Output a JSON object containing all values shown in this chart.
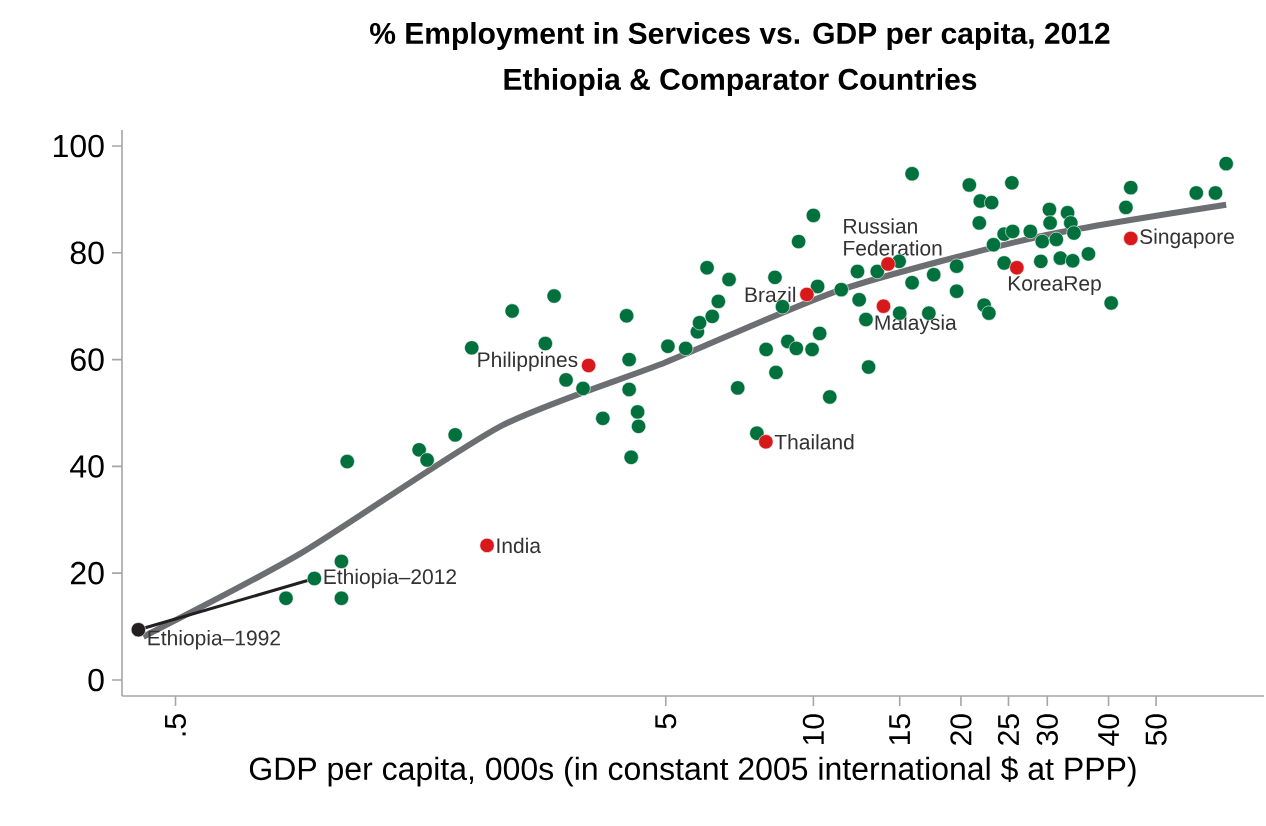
{
  "chart_data": {
    "type": "scatter",
    "title": "% Employment in Services vs. GDP per capita, 2012",
    "subtitle": "Ethiopia & Comparator Countries",
    "xlabel": "GDP per capita, 000s (in constant 2005 international $ at PPP)",
    "log": "x",
    "marker": "circle",
    "grid": false,
    "xlim": [
      0.389,
      83
    ],
    "ylim": [
      -3,
      103
    ],
    "xticks": [
      {
        "value": 0.5,
        "label": ".5"
      },
      5,
      10,
      15,
      20,
      25,
      30,
      40,
      50
    ],
    "yticks": [
      0,
      20,
      40,
      60,
      80,
      100
    ],
    "series": [
      {
        "type": "line",
        "color": "#6d6e71",
        "marker": "none",
        "x": [
          0.43,
          0.9,
          2.3,
          5.0,
          11.4,
          29.1,
          69.5
        ],
        "values": [
          8.1,
          23.7,
          47.5,
          59.5,
          73.1,
          83.1,
          89.0
        ]
      },
      {
        "type": "line",
        "color": "#231f20",
        "marker": "none",
        "x": [
          0.42,
          0.96
        ],
        "values": [
          9.4,
          19.0
        ]
      },
      {
        "color": "#00703c",
        "x": [
          0.84,
          1.09,
          1.09,
          1.12,
          1.57,
          1.63,
          1.86,
          2.01,
          2.43,
          2.84,
          2.96,
          3.13,
          3.39,
          3.72,
          4.16,
          4.21,
          4.21,
          4.38,
          4.4,
          4.25,
          5.05,
          0.96,
          5.49,
          5.8,
          5.86,
          6.22,
          6.4,
          6.07,
          6.73,
          7.01,
          7.67,
          8.01,
          8.39,
          8.35,
          9.33,
          10.0,
          8.65,
          8.87,
          9.23,
          9.94,
          10.3,
          10.2,
          10.8,
          11.4,
          12.3,
          12.4,
          12.8,
          12.96,
          13.5,
          14.96,
          15.0,
          15.9,
          15.9,
          17.2,
          17.6,
          19.6,
          19.6,
          20.8,
          21.8,
          21.9,
          23.1,
          22.3,
          22.8,
          23.3,
          24.5,
          25.4,
          24.5,
          25.5,
          27.7,
          29.1,
          29.3,
          30.3,
          30.4,
          31.3,
          33.0,
          33.5,
          34.0,
          31.9,
          33.8,
          36.4,
          40.5,
          43.4,
          44.4,
          60.4,
          66.1,
          69.5
        ],
        "values": [
          15.3,
          15.3,
          22.2,
          40.9,
          43.1,
          41.2,
          45.9,
          62.2,
          69.1,
          63.0,
          71.9,
          56.2,
          54.6,
          49.0,
          68.2,
          60.0,
          54.4,
          50.2,
          47.5,
          41.7,
          62.5,
          19.0,
          62.1,
          65.2,
          66.9,
          68.1,
          70.9,
          77.2,
          75.0,
          54.7,
          46.2,
          61.9,
          57.6,
          75.4,
          82.1,
          87.0,
          69.9,
          63.4,
          62.1,
          61.9,
          64.9,
          73.7,
          53.0,
          73.1,
          76.5,
          71.2,
          67.5,
          58.6,
          76.5,
          78.4,
          68.7,
          74.4,
          94.8,
          68.7,
          75.9,
          72.8,
          77.5,
          92.7,
          85.6,
          89.7,
          89.4,
          70.2,
          68.7,
          81.5,
          83.5,
          93.1,
          78.1,
          84.0,
          84.0,
          78.4,
          82.1,
          88.1,
          85.6,
          82.5,
          87.5,
          85.6,
          83.7,
          79.0,
          78.5,
          79.8,
          70.6,
          88.5,
          92.2,
          91.2,
          91.2,
          96.7
        ]
      },
      {
        "color": "#d7191c",
        "x": [
          2.16,
          3.48,
          8.0,
          9.7,
          14.2,
          13.9,
          26.0,
          44.4
        ],
        "values": [
          25.2,
          58.9,
          44.6,
          72.2,
          77.9,
          70.0,
          77.2,
          82.7
        ]
      },
      {
        "color": "#231f20",
        "x": [
          0.42
        ],
        "values": [
          9.4
        ]
      }
    ],
    "annotations": [
      {
        "text": "Ethiopia–1992",
        "x": 0.42,
        "y": 9.4
      },
      {
        "text": "Ethiopia–2012",
        "x": 0.96,
        "y": 19.0
      },
      {
        "text": "India",
        "x": 2.16,
        "y": 25.2
      },
      {
        "text": "Philippines",
        "x": 3.48,
        "y": 58.9
      },
      {
        "text": "Thailand",
        "x": 8.0,
        "y": 44.6
      },
      {
        "text": "Brazil",
        "x": 9.7,
        "y": 72.2
      },
      {
        "text": "Russian Federation",
        "x": 14.2,
        "y": 77.9
      },
      {
        "text": "Malaysia",
        "x": 13.9,
        "y": 70.0
      },
      {
        "text": "KoreaRep",
        "x": 26.0,
        "y": 77.2
      },
      {
        "text": "Singapore",
        "x": 44.4,
        "y": 82.7
      }
    ]
  }
}
